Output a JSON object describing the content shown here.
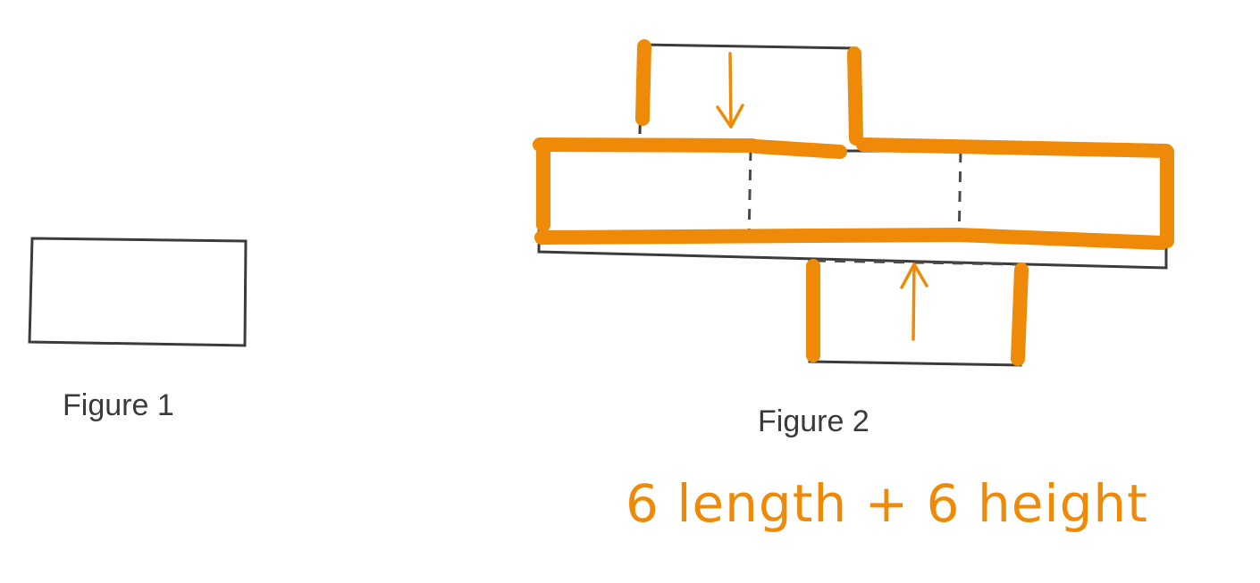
{
  "figure1": {
    "label": "Figure 1"
  },
  "figure2": {
    "label": "Figure 2"
  },
  "annotation": {
    "text": "6 length + 6 height"
  },
  "colors": {
    "highlight": "#EE8A07",
    "line": "#3B3B3B"
  }
}
